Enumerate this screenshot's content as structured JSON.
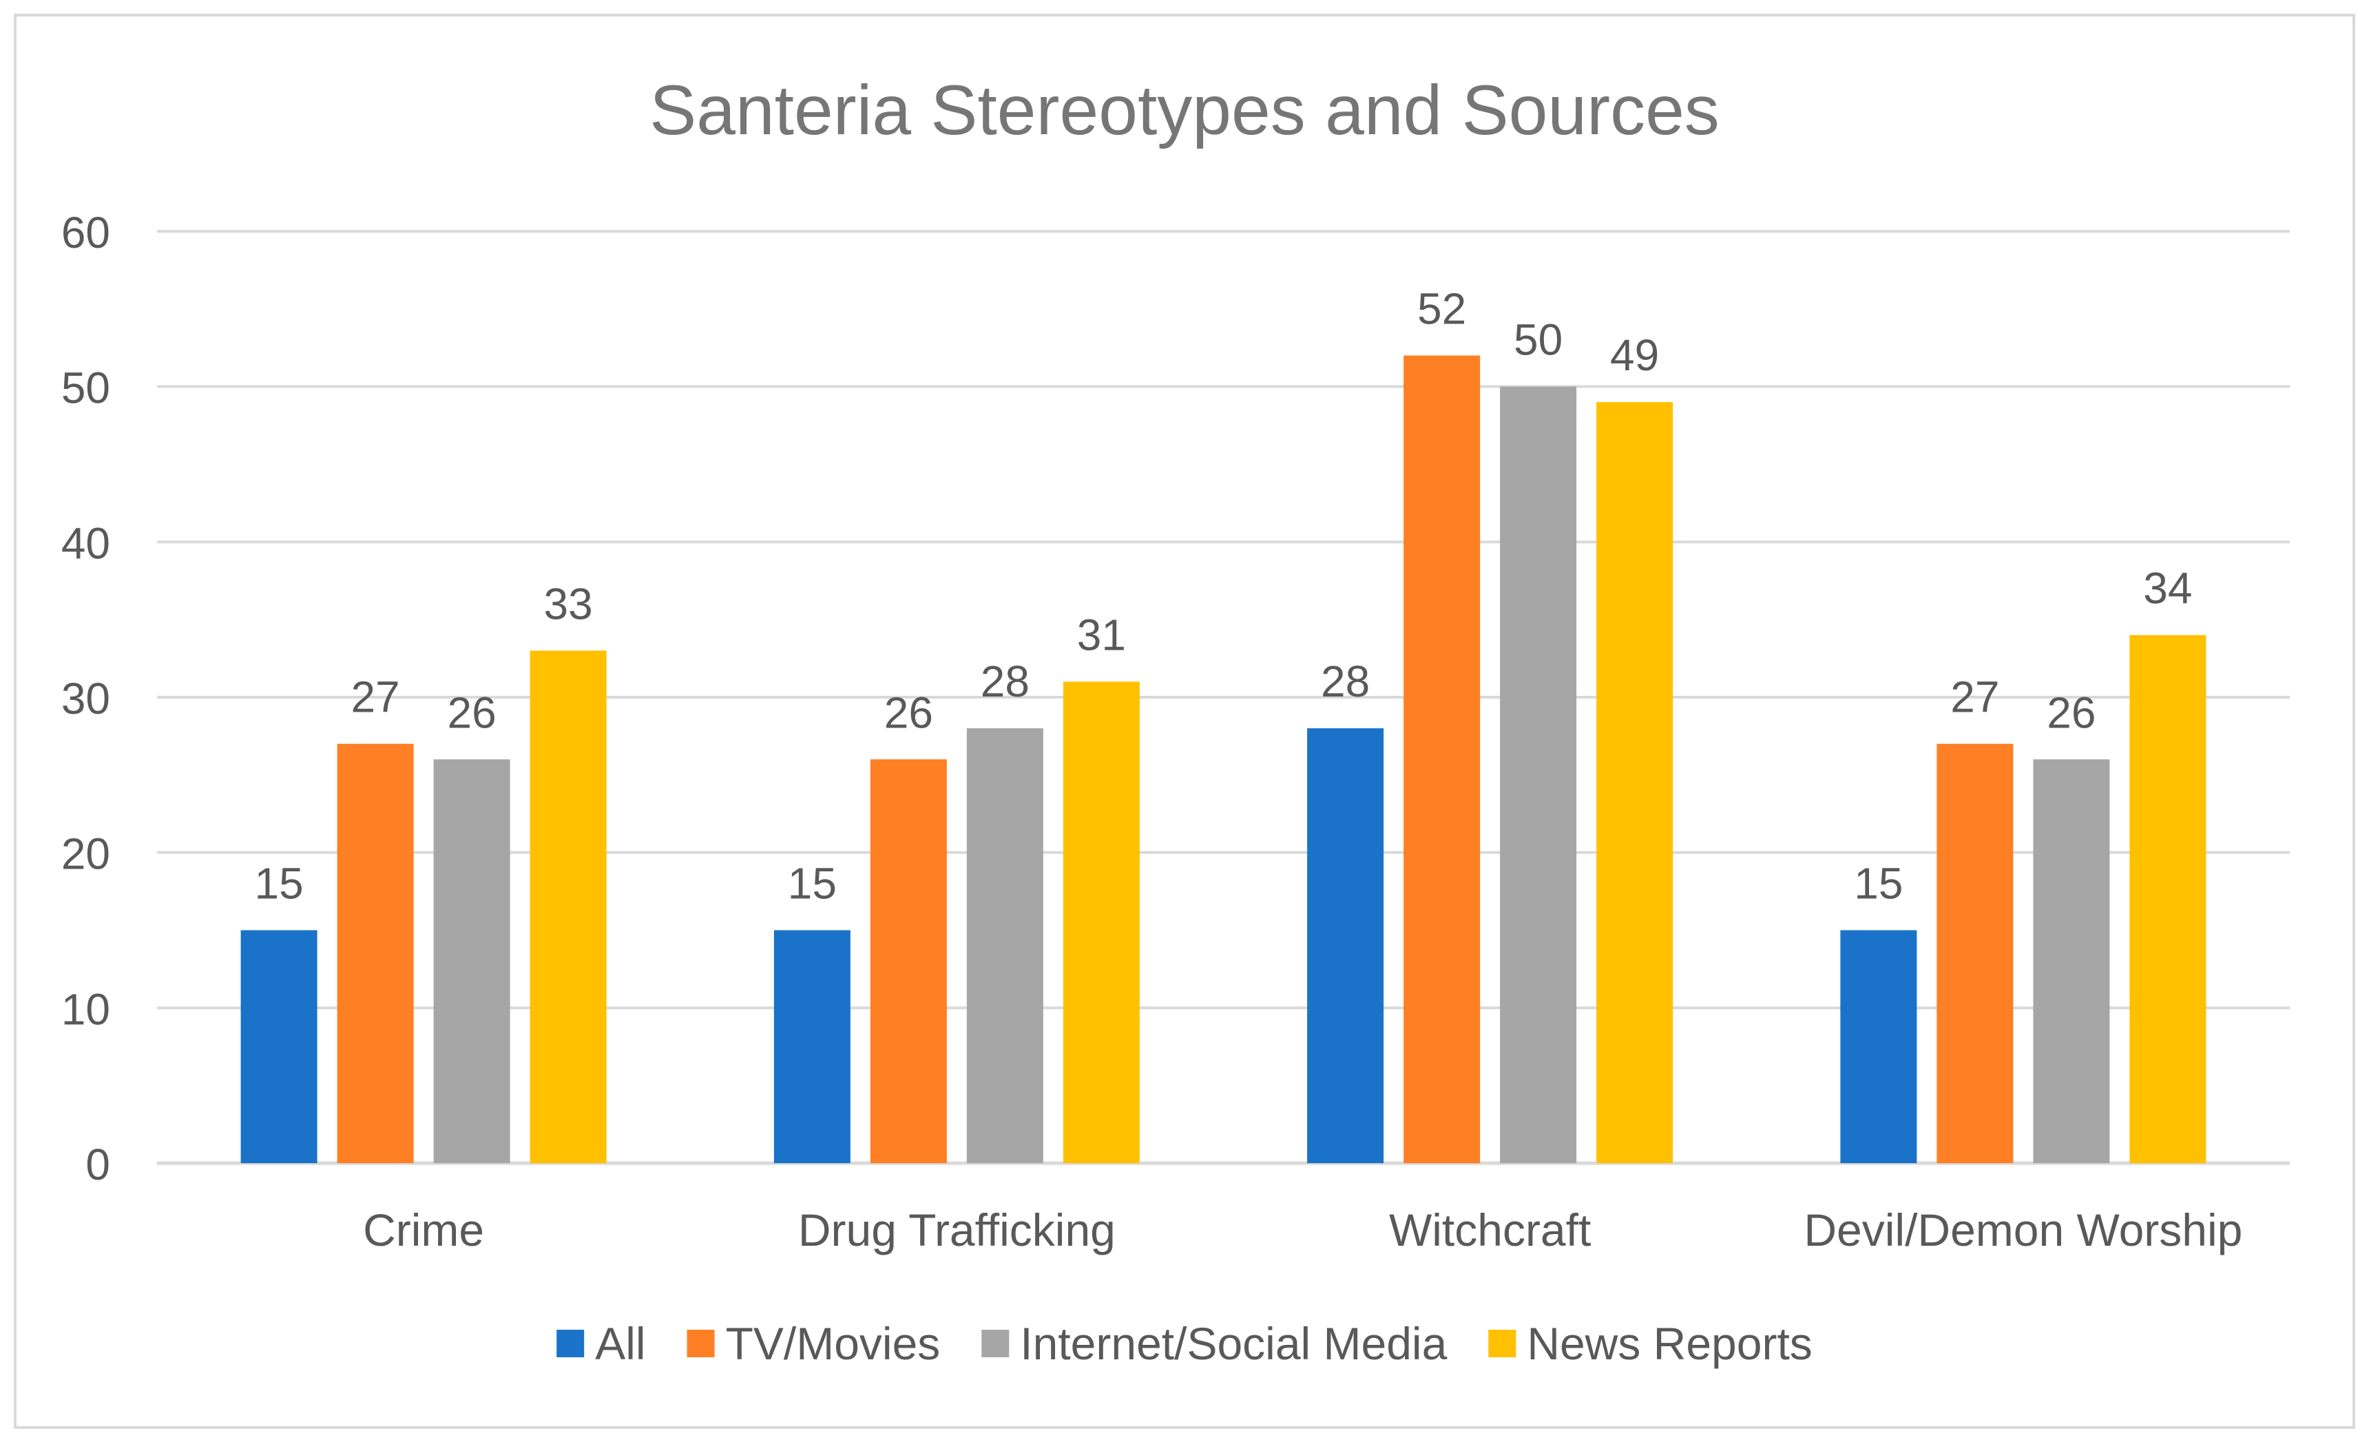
{
  "chart_data": {
    "type": "bar",
    "title": "Santeria Stereotypes and Sources",
    "xlabel": "",
    "ylabel": "",
    "ylim": [
      0,
      60
    ],
    "yticks": [
      0,
      10,
      20,
      30,
      40,
      50,
      60
    ],
    "ytick_labels": [
      "0",
      "10",
      "20",
      "30",
      "40",
      "50",
      "60"
    ],
    "grid": true,
    "legend_position": "bottom",
    "categories": [
      "Crime",
      "Drug Trafficking",
      "Witchcraft",
      "Devil/Demon Worship"
    ],
    "series": [
      {
        "name": "All",
        "color": "#1A73C8",
        "values": [
          15,
          15,
          28,
          15
        ]
      },
      {
        "name": "TV/Movies",
        "color": "#FF7F24",
        "values": [
          27,
          26,
          52,
          27
        ]
      },
      {
        "name": "Internet/Social Media",
        "color": "#A6A6A6",
        "values": [
          26,
          28,
          50,
          26
        ]
      },
      {
        "name": "News Reports",
        "color": "#FFC000",
        "values": [
          33,
          31,
          49,
          34
        ]
      }
    ],
    "colors": {
      "grid": "#D9D9D9",
      "text": "#595959",
      "title": "#767676",
      "border": "#D9D9D9"
    }
  }
}
